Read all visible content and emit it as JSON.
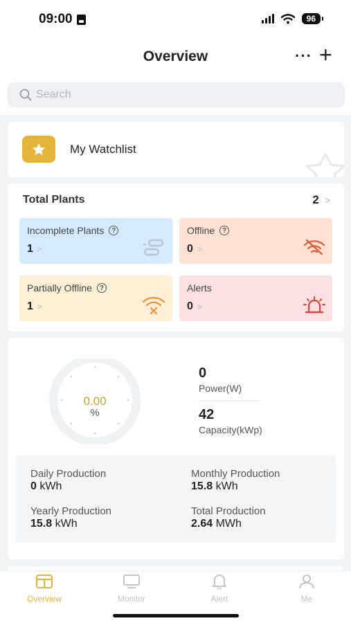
{
  "status_bar": {
    "time": "09:00",
    "battery": "96"
  },
  "header": {
    "title": "Overview",
    "more": "···",
    "add": "+"
  },
  "search": {
    "placeholder": "Search",
    "value": ""
  },
  "watchlist": {
    "label": "My Watchlist"
  },
  "plants": {
    "title": "Total Plants",
    "count": "2",
    "tiles": [
      {
        "label": "Incomplete Plants",
        "value": "1"
      },
      {
        "label": "Offline",
        "value": "0"
      },
      {
        "label": "Partially Offline",
        "value": "1"
      },
      {
        "label": "Alerts",
        "value": "0"
      }
    ]
  },
  "production": {
    "gauge_value": "0.00",
    "gauge_unit": "%",
    "power_value": "0",
    "power_label": "Power(W)",
    "capacity_value": "42",
    "capacity_label": "Capacity(kWp)",
    "daily_label": "Daily Production",
    "daily_value": "0",
    "daily_unit": "kWh",
    "monthly_label": "Monthly Production",
    "monthly_value": "15.8",
    "monthly_unit": "kWh",
    "yearly_label": "Yearly Production",
    "yearly_value": "15.8",
    "yearly_unit": "kWh",
    "total_label": "Total Production",
    "total_value": "2.64",
    "total_unit": "MWh"
  },
  "tabbar": {
    "items": [
      {
        "label": "Overview",
        "icon": "overview-icon"
      },
      {
        "label": "Monitor",
        "icon": "monitor-icon"
      },
      {
        "label": "Alert",
        "icon": "bell-icon"
      },
      {
        "label": "Me",
        "icon": "person-icon"
      }
    ]
  },
  "colors": {
    "accent": "#e4b33a",
    "alert_red": "#e0413c",
    "offline_red": "#e05a3a",
    "warning_orange": "#e8923a"
  }
}
